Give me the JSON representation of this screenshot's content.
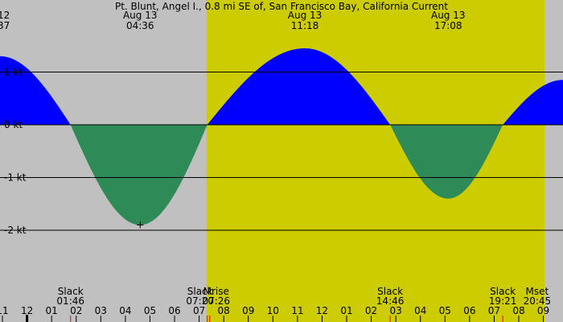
{
  "chart_data": {
    "type": "area",
    "title": "Pt. Blunt, Angel I., 0.8 mi SE of, San Francisco Bay, California Current",
    "y_unit": "kt",
    "y_range": [
      -3.05,
      2.35
    ],
    "x_range_hours": [
      -1.1,
      21.8
    ],
    "daylight_hours": [
      7.3,
      21.05
    ],
    "y_ticks": [
      {
        "value": 1,
        "label": "1 kt"
      },
      {
        "value": 0,
        "label": "0 kt"
      },
      {
        "value": -1,
        "label": "-1 kt"
      },
      {
        "value": -2,
        "label": "-2 kt"
      }
    ],
    "extremes": [
      {
        "date": "Aug 13",
        "time": "04:36",
        "hour": 4.6,
        "value": -1.9,
        "prev_label": "12",
        "prev_value_label": "37"
      },
      {
        "date": "Aug 13",
        "time": "11:18",
        "hour": 11.3,
        "value": 1.45
      },
      {
        "date": "Aug 13",
        "time": "17:08",
        "hour": 17.13,
        "value": -1.4
      }
    ],
    "edge_labels": {
      "date_fragment": "12",
      "time_fragment": "37"
    },
    "curve": [
      {
        "hour": -1.1,
        "value": 1.3
      },
      {
        "hour": 1.77,
        "value": 0
      },
      {
        "hour": 4.6,
        "value": -1.9
      },
      {
        "hour": 7.33,
        "value": 0
      },
      {
        "hour": 11.3,
        "value": 1.45
      },
      {
        "hour": 14.77,
        "value": 0
      },
      {
        "hour": 17.13,
        "value": -1.4
      },
      {
        "hour": 19.35,
        "value": 0
      },
      {
        "hour": 21.8,
        "value": 0.85
      }
    ],
    "events": [
      {
        "name": "Slack",
        "time": "01:46",
        "hour": 1.77
      },
      {
        "name": "Slack",
        "time": "07:20",
        "hour": 7.33
      },
      {
        "name": "Mrise",
        "time": "07:26",
        "hour": 7.43
      },
      {
        "name": "Slack",
        "time": "14:46",
        "hour": 14.77
      },
      {
        "name": "Slack",
        "time": "19:21",
        "hour": 19.35
      },
      {
        "name": "Mset",
        "time": "20:45",
        "hour": 20.75
      }
    ],
    "hour_ticks": [
      "11",
      "12",
      "01",
      "02",
      "03",
      "04",
      "05",
      "06",
      "07",
      "08",
      "09",
      "10",
      "11",
      "12",
      "01",
      "02",
      "03",
      "04",
      "05",
      "06",
      "07",
      "08",
      "09"
    ],
    "hour_ticks_start": -1,
    "midnight_hour": 0,
    "red_tick_hours": [
      1.77,
      7.33,
      7.43,
      14.77,
      19.35
    ],
    "colors": {
      "night": "#c0c0c0",
      "day": "#cccc00",
      "flood": "#0000ff",
      "ebb": "#2e8b57",
      "red_tick": "#ff0000"
    }
  }
}
